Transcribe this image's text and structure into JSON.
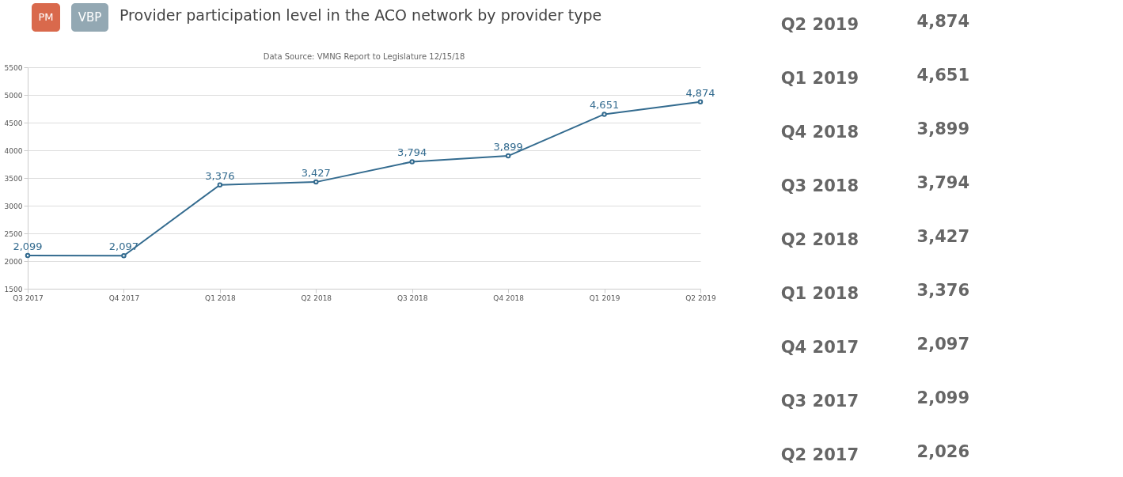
{
  "chart_data": [
    {
      "type": "line",
      "title": "Provider participation level in the ACO network by provider type",
      "subtitle": "Data Source: VMNG Report to Legislature 12/15/18",
      "annotations": [
        "PM",
        "VBP"
      ],
      "categories": [
        "Q3 2017",
        "Q4 2017",
        "Q1 2018",
        "Q2 2018",
        "Q3 2018",
        "Q4 2018",
        "Q1 2019",
        "Q2 2019"
      ],
      "values": [
        2099,
        2097,
        3376,
        3427,
        3794,
        3899,
        4651,
        4874
      ],
      "color": "#336b8f",
      "ylim": [
        1500,
        5500
      ],
      "yticks": [
        1500,
        2000,
        2500,
        3000,
        3500,
        4000,
        4500,
        5000,
        5500
      ],
      "value_labels": [
        "2,099",
        "2,097",
        "3,376",
        "3,427",
        "3,794",
        "3,899",
        "4,651",
        "4,874"
      ],
      "grid": "y",
      "marker": "circle",
      "line_style": "solid"
    },
    {
      "type": "other",
      "annotations": [
        "Q2 2019",
        "4,874",
        "Q1 2019",
        "4,651",
        "Q4 2018",
        "3,899",
        "Q3 2018",
        "3,794",
        "Q2 2018",
        "3,427",
        "Q1 2018",
        "3,376",
        "Q4 2017",
        "2,097",
        "Q3 2017",
        "2,099",
        "Q2 2017",
        "2,026"
      ]
    }
  ]
}
